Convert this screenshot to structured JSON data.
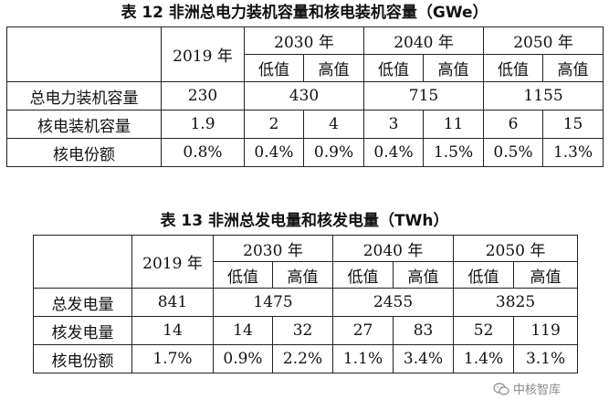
{
  "table12": {
    "caption": "表 12  非洲总电力装机容量和核电装机容量（GWe）",
    "year2019": "2019 年",
    "y2030": "2030 年",
    "y2040": "2040 年",
    "y2050": "2050 年",
    "low": "低值",
    "high": "高值",
    "rows": [
      {
        "label": "总电力装机容量",
        "v2019": "230",
        "v2030": "430",
        "v2040": "715",
        "v2050": "1155"
      },
      {
        "label": "核电装机容量",
        "v2019": "1.9",
        "c": [
          "2",
          "4",
          "3",
          "11",
          "6",
          "15"
        ]
      },
      {
        "label": "核电份额",
        "v2019": "0.8%",
        "c": [
          "0.4%",
          "0.9%",
          "0.4%",
          "1.5%",
          "0.5%",
          "1.3%"
        ]
      }
    ]
  },
  "table13": {
    "caption": "表 13  非洲总发电量和核发电量（TWh）",
    "year2019": "2019 年",
    "y2030": "2030 年",
    "y2040": "2040 年",
    "y2050": "2050 年",
    "low": "低值",
    "high": "高值",
    "rows": [
      {
        "label": "总发电量",
        "v2019": "841",
        "v2030": "1475",
        "v2040": "2455",
        "v2050": "3825"
      },
      {
        "label": "核发电量",
        "v2019": "14",
        "c": [
          "14",
          "32",
          "27",
          "83",
          "52",
          "119"
        ]
      },
      {
        "label": "核电份额",
        "v2019": "1.7%",
        "c": [
          "0.9%",
          "2.2%",
          "1.1%",
          "3.4%",
          "1.4%",
          "3.1%"
        ]
      }
    ]
  },
  "watermark": {
    "text": "中核智库",
    "icon": "wechat-icon"
  }
}
